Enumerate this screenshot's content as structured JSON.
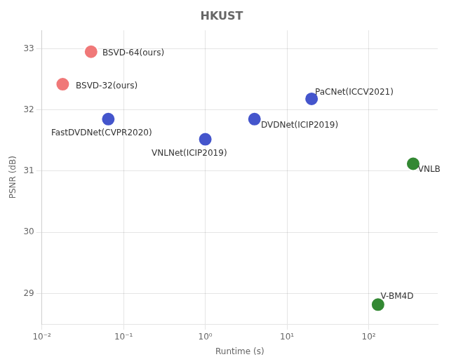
{
  "chart_data": {
    "type": "scatter",
    "title": "HKUST",
    "xlabel": "Runtime (s)",
    "ylabel": "PSNR (dB)",
    "log": "x",
    "grid": true,
    "x": [
      0.04,
      0.018,
      0.065,
      1.0,
      4.0,
      20.0,
      350.0,
      130.0
    ],
    "values": [
      32.95,
      32.42,
      31.85,
      31.52,
      31.85,
      32.18,
      31.12,
      28.82
    ],
    "colors": [
      "#f07878",
      "#f07878",
      "#4455cc",
      "#4455cc",
      "#4455cc",
      "#4455cc",
      "#338833",
      "#338833"
    ],
    "annotations": [
      {
        "text": "BSVD-64(ours)",
        "x": 0.055,
        "y": 32.93
      },
      {
        "text": "BSVD-32(ours)",
        "x": 0.026,
        "y": 32.39
      },
      {
        "text": "FastDVDNet(CVPR2020)",
        "x": 0.013,
        "y": 31.62
      },
      {
        "text": "VNLNet(ICIP2019)",
        "x": 0.22,
        "y": 31.29
      },
      {
        "text": "DVDNet(ICIP2019)",
        "x": 4.8,
        "y": 31.75
      },
      {
        "text": "PaCNet(ICCV2021)",
        "x": 22,
        "y": 32.28
      },
      {
        "text": "VNLB",
        "x": 400,
        "y": 31.02
      },
      {
        "text": "V-BM4D",
        "x": 140,
        "y": 28.95
      }
    ],
    "xlim": [
      0.01,
      700
    ],
    "xticks": [
      {
        "value": 0.01,
        "label": "10⁻²"
      },
      {
        "value": 0.1,
        "label": "10⁻¹"
      },
      {
        "value": 1,
        "label": "10⁰"
      },
      {
        "value": 10,
        "label": "10¹"
      },
      {
        "value": 100,
        "label": "10²"
      }
    ],
    "ylim": [
      28.5,
      33.3
    ],
    "yticks": [
      29,
      30,
      31,
      32,
      33
    ]
  }
}
